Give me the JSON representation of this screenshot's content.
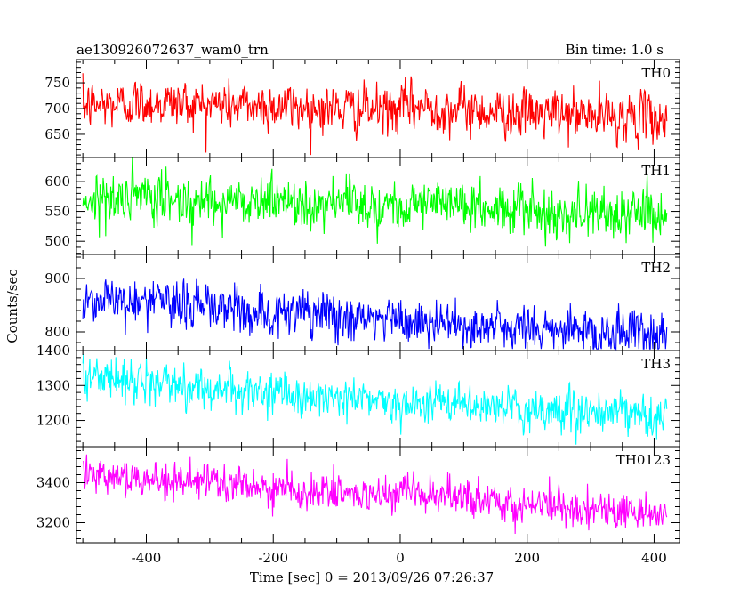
{
  "chart_data": {
    "type": "line",
    "title": "ae130926072637_wam0_trn",
    "bin_time": "Bin time: 1.0 s",
    "xlabel": "Time [sec] 0 = 2013/09/26 07:26:37",
    "ylabel": "Counts/sec",
    "xlim": [
      -510,
      440
    ],
    "x_ticks": [
      "-400",
      "-200",
      "0",
      "200",
      "400"
    ],
    "x_tick_values": [
      -400,
      -200,
      0,
      200,
      400
    ],
    "x_range_data": [
      -500,
      420
    ],
    "panels": [
      {
        "name": "TH0",
        "color": "#ff0000",
        "ylim": [
          605,
          795
        ],
        "y_ticks": [
          "650",
          "700",
          "750"
        ],
        "y_tick_values": [
          650,
          700,
          750
        ],
        "trend": [
          [
            -500,
            705
          ],
          [
            -400,
            712
          ],
          [
            -200,
            705
          ],
          [
            -10,
            695
          ],
          [
            10,
            705
          ],
          [
            200,
            690
          ],
          [
            420,
            680
          ]
        ],
        "noise": 28,
        "min": 610,
        "max": 795
      },
      {
        "name": "TH1",
        "color": "#00ff00",
        "ylim": [
          478,
          640
        ],
        "y_ticks": [
          "500",
          "550",
          "600"
        ],
        "y_tick_values": [
          500,
          550,
          600
        ],
        "trend": [
          [
            -500,
            572
          ],
          [
            -400,
            570
          ],
          [
            -200,
            568
          ],
          [
            -10,
            560
          ],
          [
            10,
            568
          ],
          [
            200,
            550
          ],
          [
            420,
            545
          ]
        ],
        "noise": 25,
        "min": 478,
        "max": 640
      },
      {
        "name": "TH2",
        "color": "#0000ff",
        "ylim": [
          765,
          945
        ],
        "y_ticks": [
          "800",
          "900"
        ],
        "y_tick_values": [
          800,
          900
        ],
        "trend": [
          [
            -500,
            862
          ],
          [
            -400,
            858
          ],
          [
            -200,
            835
          ],
          [
            0,
            820
          ],
          [
            200,
            805
          ],
          [
            420,
            795
          ]
        ],
        "noise": 27,
        "min": 768,
        "max": 945
      },
      {
        "name": "TH3",
        "color": "#00ffff",
        "ylim": [
          1125,
          1400
        ],
        "y_ticks": [
          "1200",
          "1300",
          "1400"
        ],
        "y_tick_values": [
          1200,
          1300,
          1400
        ],
        "trend": [
          [
            -500,
            1330
          ],
          [
            -400,
            1310
          ],
          [
            -200,
            1275
          ],
          [
            0,
            1255
          ],
          [
            200,
            1230
          ],
          [
            420,
            1210
          ]
        ],
        "noise": 35,
        "min": 1128,
        "max": 1400
      },
      {
        "name": "TH0123",
        "color": "#ff00ff",
        "ylim": [
          3100,
          3580
        ],
        "y_ticks": [
          "3200",
          "3400"
        ],
        "y_tick_values": [
          3200,
          3400
        ],
        "trend": [
          [
            -500,
            3465
          ],
          [
            -400,
            3420
          ],
          [
            -200,
            3370
          ],
          [
            -10,
            3325
          ],
          [
            10,
            3345
          ],
          [
            200,
            3290
          ],
          [
            420,
            3245
          ]
        ],
        "noise": 55,
        "min": 3105,
        "max": 3580
      }
    ]
  }
}
